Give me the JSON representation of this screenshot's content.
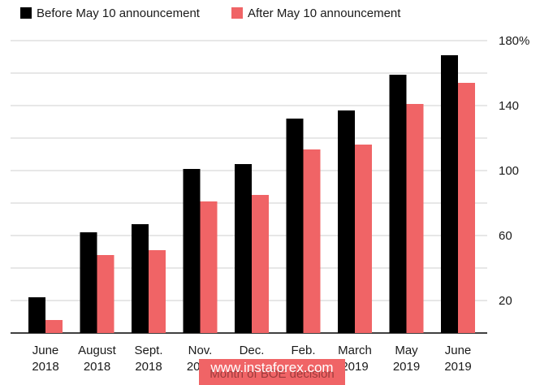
{
  "chart_data": {
    "type": "bar",
    "categories": [
      [
        "June",
        "2018"
      ],
      [
        "August",
        "2018"
      ],
      [
        "Sept.",
        "2018"
      ],
      [
        "Nov.",
        "2018"
      ],
      [
        "Dec.",
        "2018"
      ],
      [
        "Feb.",
        "2019"
      ],
      [
        "March",
        "2019"
      ],
      [
        "May",
        "2019"
      ],
      [
        "June",
        "2019"
      ]
    ],
    "series": [
      {
        "name": "Before May 10 announcement",
        "color": "#000000",
        "values": [
          22,
          62,
          67,
          101,
          104,
          132,
          137,
          159,
          171
        ]
      },
      {
        "name": "After May 10 announcement",
        "color": "#f06466",
        "values": [
          8,
          48,
          51,
          81,
          85,
          113,
          116,
          141,
          154
        ]
      }
    ],
    "yticks": [
      {
        "value": 20,
        "label": "20"
      },
      {
        "value": 60,
        "label": "60"
      },
      {
        "value": 100,
        "label": "100"
      },
      {
        "value": 140,
        "label": "140"
      },
      {
        "value": 180,
        "label": "180%"
      }
    ],
    "ylim": [
      0,
      180
    ],
    "grid": true,
    "legend_position": "top-left",
    "xlabel": "Month of BOE decision"
  },
  "watermark": "www.instaforex.com"
}
